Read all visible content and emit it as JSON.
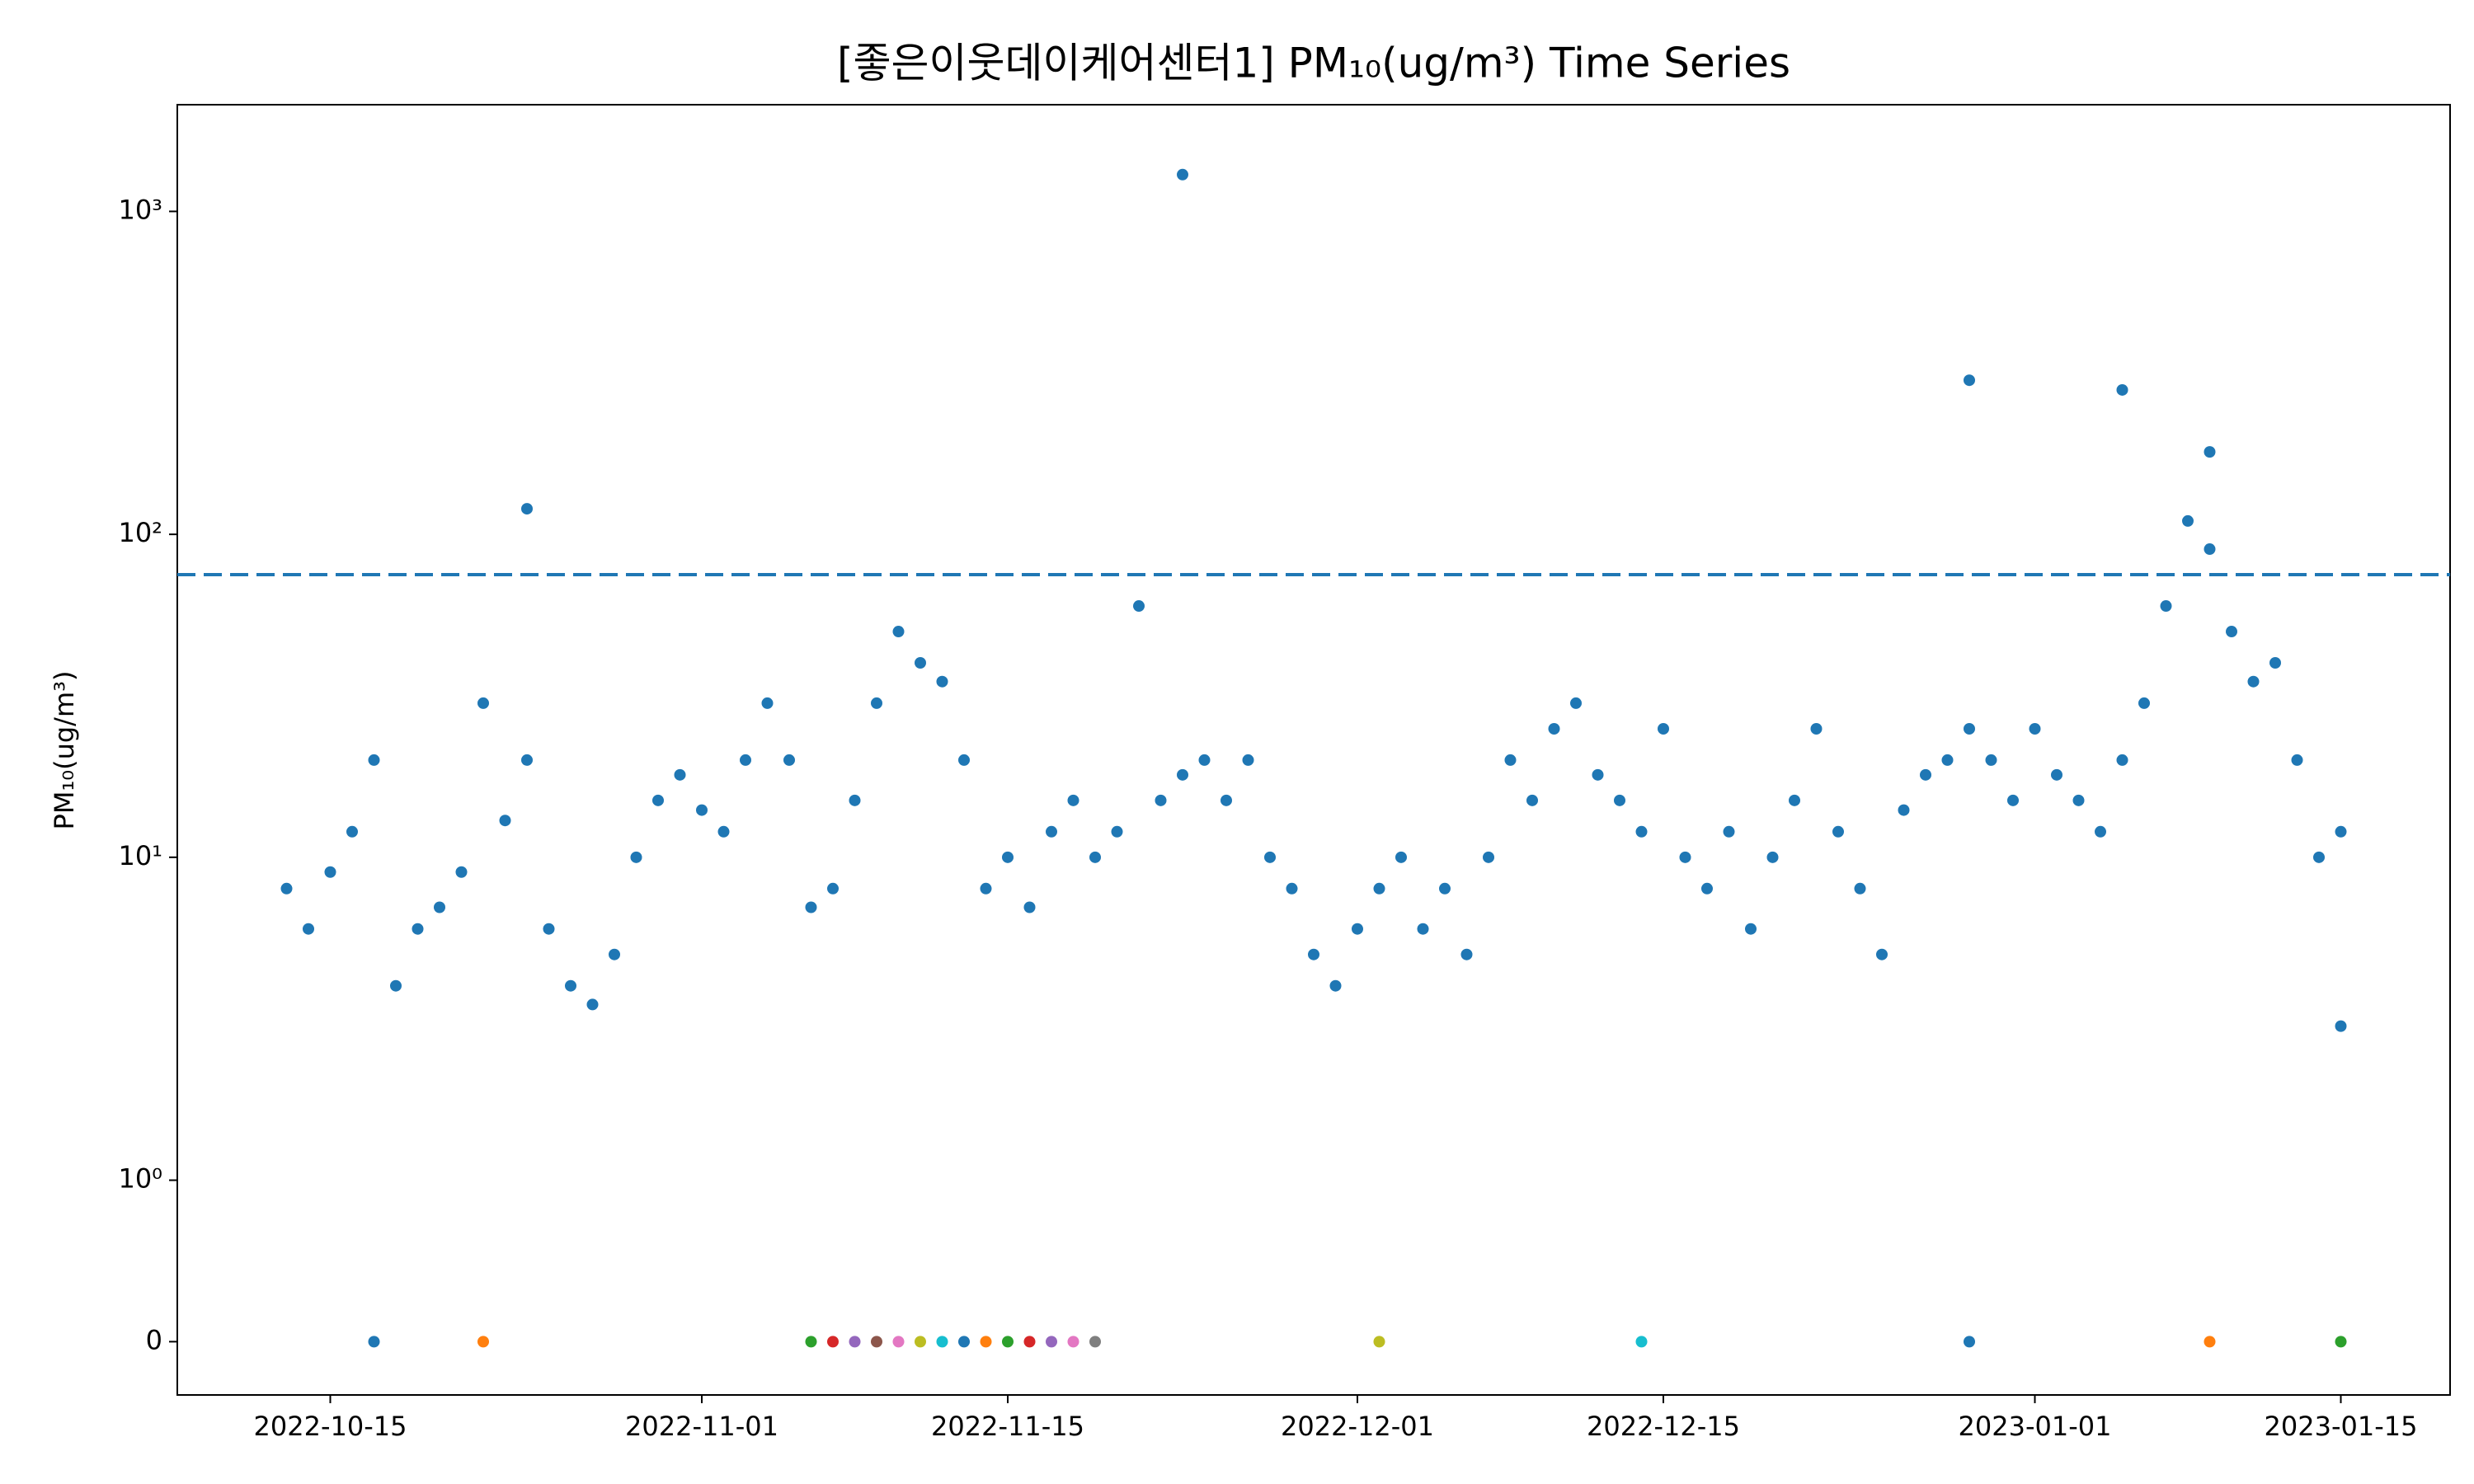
{
  "chart_data": {
    "type": "scatter",
    "title": "[좋은이웃데이케어센터1] PM₁₀(ug/m³) Time Series",
    "ylabel": "PM₁₀(ug/m³)",
    "yscale": "symlog",
    "xlim": [
      "2022-10-08",
      "2023-01-20"
    ],
    "xticks": [
      "2022-10-15",
      "2022-11-01",
      "2022-11-15",
      "2022-12-01",
      "2022-12-15",
      "2023-01-01",
      "2023-01-15"
    ],
    "ylim": [
      -0.33,
      2140
    ],
    "yticks": [
      0,
      {
        "value": 1,
        "label": "10⁰"
      },
      {
        "value": 10,
        "label": "10¹"
      },
      {
        "value": 100,
        "label": "10²"
      },
      {
        "value": 1000,
        "label": "10³"
      }
    ],
    "hline": {
      "value": 75,
      "color": "#1f77b4",
      "style": "dashed"
    },
    "series": [
      {
        "color": "#1f77b4",
        "x": [
          "2022-10-13",
          "2022-10-14",
          "2022-10-15",
          "2022-10-16",
          "2022-10-17",
          "2022-10-18",
          "2022-10-19",
          "2022-10-20",
          "2022-10-21",
          "2022-10-22",
          "2022-10-23",
          "2022-10-24",
          "2022-10-24",
          "2022-10-25",
          "2022-10-26",
          "2022-10-27",
          "2022-10-28",
          "2022-10-29",
          "2022-10-30",
          "2022-10-31",
          "2022-11-01",
          "2022-11-02",
          "2022-11-03",
          "2022-11-04",
          "2022-11-05",
          "2022-11-06",
          "2022-11-07",
          "2022-11-08",
          "2022-11-09",
          "2022-11-10",
          "2022-11-11",
          "2022-11-12",
          "2022-11-13",
          "2022-11-14",
          "2022-11-15",
          "2022-11-16",
          "2022-11-17",
          "2022-11-18",
          "2022-11-19",
          "2022-11-20",
          "2022-11-21",
          "2022-11-22",
          "2022-11-23",
          "2022-11-23",
          "2022-11-24",
          "2022-11-25",
          "2022-11-26",
          "2022-11-27",
          "2022-11-28",
          "2022-11-29",
          "2022-11-30",
          "2022-12-01",
          "2022-12-02",
          "2022-12-03",
          "2022-12-04",
          "2022-12-05",
          "2022-12-06",
          "2022-12-07",
          "2022-12-08",
          "2022-12-09",
          "2022-12-10",
          "2022-12-11",
          "2022-12-12",
          "2022-12-13",
          "2022-12-14",
          "2022-12-15",
          "2022-12-16",
          "2022-12-17",
          "2022-12-18",
          "2022-12-19",
          "2022-12-20",
          "2022-12-21",
          "2022-12-22",
          "2022-12-23",
          "2022-12-24",
          "2022-12-25",
          "2022-12-26",
          "2022-12-27",
          "2022-12-28",
          "2022-12-29",
          "2022-12-29",
          "2022-12-30",
          "2022-12-31",
          "2023-01-01",
          "2023-01-02",
          "2023-01-03",
          "2023-01-04",
          "2023-01-05",
          "2023-01-05",
          "2023-01-06",
          "2023-01-07",
          "2023-01-08",
          "2023-01-09",
          "2023-01-09",
          "2023-01-10",
          "2023-01-11",
          "2023-01-12",
          "2023-01-13",
          "2023-01-14",
          "2023-01-15",
          "2023-01-15"
        ],
        "values": [
          8,
          6,
          9,
          12,
          20,
          4,
          6,
          7,
          9,
          30,
          13,
          20,
          120,
          6,
          4,
          3.5,
          5,
          10,
          15,
          18,
          14,
          12,
          20,
          30,
          20,
          7,
          8,
          15,
          30,
          50,
          40,
          35,
          20,
          8,
          10,
          7,
          12,
          15,
          10,
          12,
          60,
          15,
          18,
          1300,
          20,
          15,
          20,
          10,
          8,
          5,
          4,
          6,
          8,
          10,
          6,
          8,
          5,
          10,
          20,
          15,
          25,
          30,
          18,
          15,
          12,
          25,
          10,
          8,
          12,
          6,
          10,
          15,
          25,
          12,
          8,
          5,
          14,
          18,
          20,
          25,
          300,
          20,
          15,
          25,
          18,
          15,
          12,
          20,
          280,
          30,
          60,
          110,
          90,
          180,
          50,
          35,
          40,
          20,
          10,
          3,
          12
        ]
      },
      {
        "x": [
          "2022-10-17",
          "2022-10-22",
          "2022-11-06",
          "2022-11-07",
          "2022-11-08",
          "2022-11-09",
          "2022-11-10",
          "2022-11-11",
          "2022-11-12",
          "2022-11-13",
          "2022-11-14",
          "2022-11-15",
          "2022-11-16",
          "2022-11-17",
          "2022-11-18",
          "2022-11-19",
          "2022-12-02",
          "2022-12-14",
          "2022-12-29",
          "2023-01-09",
          "2023-01-15"
        ],
        "values": [
          0,
          0,
          0,
          0,
          0,
          0,
          0,
          0,
          0,
          0,
          0,
          0,
          0,
          0,
          0,
          0,
          0,
          0,
          0,
          0,
          0
        ],
        "colors": [
          "#1f77b4",
          "#ff7f0e",
          "#2ca02c",
          "#d62728",
          "#9467bd",
          "#8c564b",
          "#e377c2",
          "#bcbd22",
          "#17becf",
          "#1f77b4",
          "#ff7f0e",
          "#2ca02c",
          "#d62728",
          "#9467bd",
          "#e377c2",
          "#7f7f7f",
          "#bcbd22",
          "#17becf",
          "#1f77b4",
          "#ff7f0e",
          "#2ca02c"
        ]
      }
    ]
  }
}
